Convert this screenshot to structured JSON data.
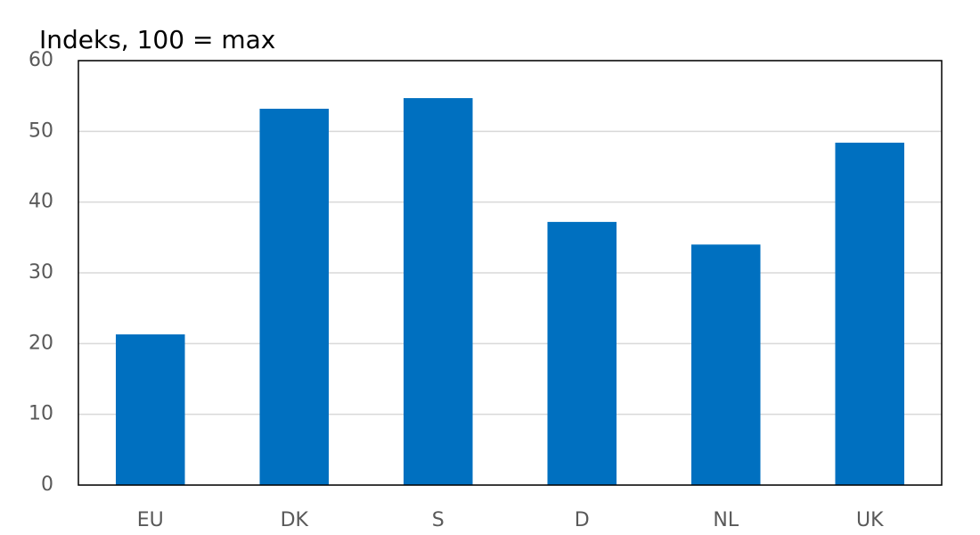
{
  "chart_data": {
    "type": "bar",
    "y_axis_label": "Indeks, 100 = max",
    "categories": [
      "EU",
      "DK",
      "S",
      "D",
      "NL",
      "UK"
    ],
    "values": [
      21.3,
      53.2,
      54.7,
      37.2,
      34.0,
      48.4
    ],
    "color": "#0070c0",
    "ylim": [
      0,
      60
    ],
    "yticks": [
      0,
      10,
      20,
      30,
      40,
      50,
      60
    ],
    "grid": true
  }
}
